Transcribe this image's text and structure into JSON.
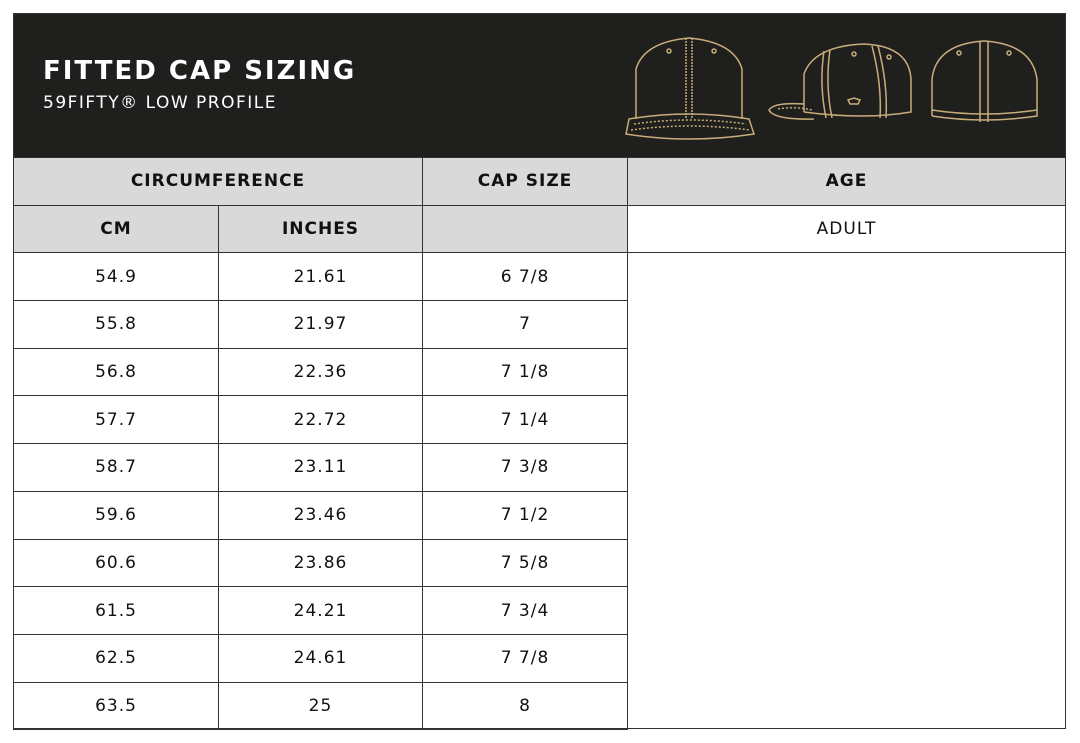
{
  "header": {
    "title": "FITTED CAP SIZING",
    "subtitle": "59FIFTY® LOW PROFILE",
    "accent": "#c8ad7a",
    "background": "#1f1f1d"
  },
  "table": {
    "group_headers": {
      "circumference": "CIRCUMFERENCE",
      "cap_size": "CAP SIZE",
      "age": "AGE"
    },
    "sub_headers": {
      "cm": "CM",
      "inches": "INCHES",
      "cap_size": ""
    },
    "age_value": "ADULT",
    "rows": [
      {
        "cm": "54.9",
        "inches": "21.61",
        "size": "6 7/8"
      },
      {
        "cm": "55.8",
        "inches": "21.97",
        "size": "7"
      },
      {
        "cm": "56.8",
        "inches": "22.36",
        "size": "7 1/8"
      },
      {
        "cm": "57.7",
        "inches": "22.72",
        "size": "7 1/4"
      },
      {
        "cm": "58.7",
        "inches": "23.11",
        "size": "7 3/8"
      },
      {
        "cm": "59.6",
        "inches": "23.46",
        "size": "7 1/2"
      },
      {
        "cm": "60.6",
        "inches": "23.86",
        "size": "7 5/8"
      },
      {
        "cm": "61.5",
        "inches": "24.21",
        "size": "7 3/4"
      },
      {
        "cm": "62.5",
        "inches": "24.61",
        "size": "7 7/8"
      },
      {
        "cm": "63.5",
        "inches": "25",
        "size": "8"
      }
    ]
  }
}
